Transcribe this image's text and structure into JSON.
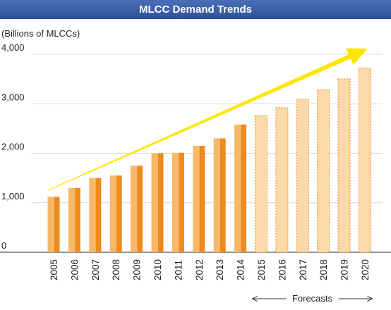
{
  "title": "MLCC Demand Trends",
  "chart_data": {
    "type": "bar",
    "title": "MLCC Demand Trends",
    "ylabel": "(Billions of MLCCs)",
    "xlabel": "",
    "ylim": [
      0,
      4000
    ],
    "yticks": [
      0,
      1000,
      2000,
      3000,
      4000
    ],
    "ytick_labels": [
      "0",
      "1,000",
      "2,000",
      "3,000",
      "4,000"
    ],
    "categories": [
      "2005",
      "2006",
      "2007",
      "2008",
      "2009",
      "2010",
      "2011",
      "2012",
      "2013",
      "2014",
      "2015",
      "2016",
      "2017",
      "2018",
      "2019",
      "2020"
    ],
    "values": [
      1120,
      1300,
      1500,
      1550,
      1750,
      2000,
      2010,
      2150,
      2300,
      2580,
      2760,
      2920,
      3090,
      3280,
      3500,
      3720
    ],
    "forecast_from": "2015",
    "forecast_label": "Forecasts",
    "grid": true,
    "trend_arrow": true,
    "colors": {
      "actual_light": "#f7b86a",
      "actual_dark": "#ee8a1e",
      "forecast_fill": "#fbd9aa",
      "forecast_border": "#f09a35",
      "arrow": "#ffe600",
      "title_bg": "#3a5ea8",
      "grid": "#d8d8d8",
      "axis": "#555555"
    }
  }
}
